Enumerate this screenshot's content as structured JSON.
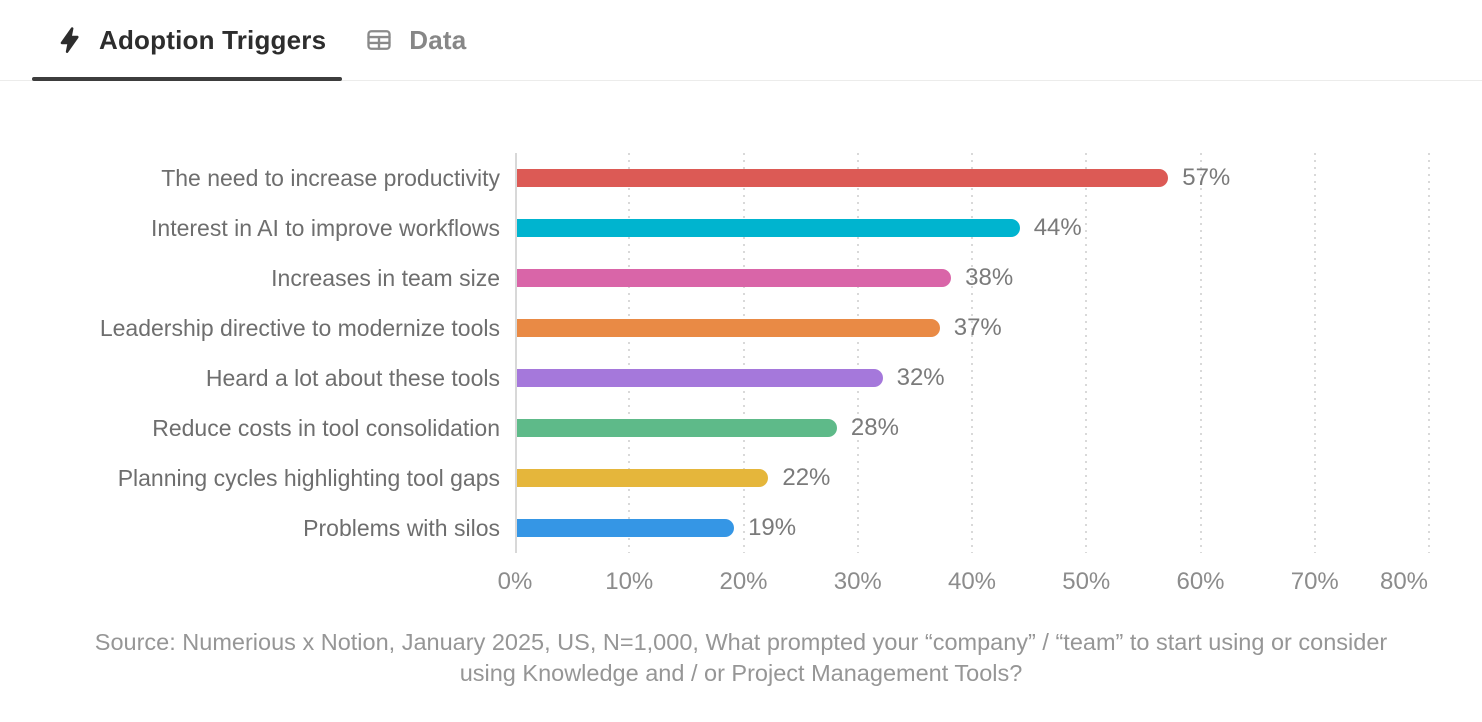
{
  "tabs": [
    {
      "label": "Adoption Triggers",
      "icon": "lightning-icon",
      "active": true
    },
    {
      "label": "Data",
      "icon": "table-icon",
      "active": false
    }
  ],
  "chart_data": {
    "type": "bar",
    "orientation": "horizontal",
    "title": "Adoption Triggers",
    "categories": [
      "The need to increase productivity",
      "Interest in AI to improve workflows",
      "Increases in team size",
      "Leadership directive to modernize tools",
      "Heard a lot about these tools",
      "Reduce costs in tool consolidation",
      "Planning cycles highlighting tool gaps",
      "Problems with silos"
    ],
    "values": [
      57,
      44,
      38,
      37,
      32,
      28,
      22,
      19
    ],
    "value_labels": [
      "57%",
      "44%",
      "38%",
      "37%",
      "32%",
      "28%",
      "22%",
      "19%"
    ],
    "bar_colors": [
      "#dc5a55",
      "#00b4cf",
      "#d965a8",
      "#e98a45",
      "#a578db",
      "#5eba89",
      "#e5b63b",
      "#3596e5"
    ],
    "x_ticks": [
      "0%",
      "10%",
      "20%",
      "30%",
      "40%",
      "50%",
      "60%",
      "70%",
      "80%"
    ],
    "xlim": [
      0,
      80
    ],
    "xlabel": "",
    "ylabel": "",
    "grid": "vertical-dotted",
    "legend": "none"
  },
  "source": {
    "text": "Source: Numerious x Notion, January 2025, US, N=1,000, What prompted your “company” / “team” to start using or consider using Knowledge and / or Project Management Tools?"
  },
  "colors": {
    "tab_active_text": "#2d2d2d",
    "tab_inactive_text": "#878787",
    "tab_underline": "#3d3d3d",
    "category_label": "#6e6e6e",
    "value_label": "#7a7a7a",
    "tick_label": "#8c8c8c",
    "source_text": "#969696",
    "axis_line": "#d8d8d8",
    "gridline": "#d9d9d9"
  }
}
